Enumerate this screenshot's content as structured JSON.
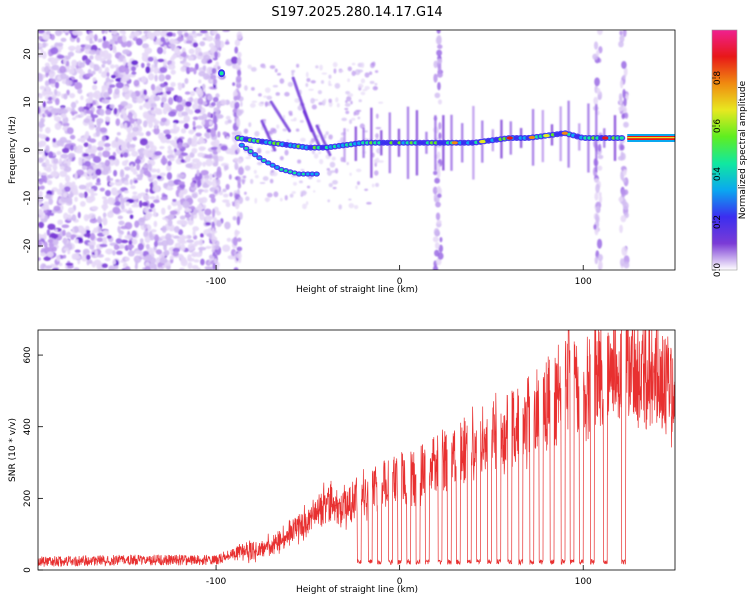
{
  "title": "S197.2025.280.14.17.G14",
  "chart_data": [
    {
      "type": "heatmap",
      "name": "spectrogram",
      "xlabel": "Height of straight line (km)",
      "ylabel": "Frequency (Hz)",
      "xlim": [
        -197,
        150
      ],
      "ylim": [
        -25,
        25
      ],
      "xticks": [
        -100,
        0,
        100
      ],
      "yticks": [
        -20,
        -10,
        0,
        10,
        20
      ],
      "colorbar": {
        "label": "Normalized spectral amplitude",
        "range": [
          0,
          1
        ],
        "ticks": [
          "0.0",
          "0.2",
          "0.4",
          "0.6",
          "0.8"
        ],
        "colors": [
          "#ffffff",
          "#7a3bd6",
          "#3b2ef0",
          "#0aa8f0",
          "#10e8a0",
          "#60ee20",
          "#e8e820",
          "#f08a10",
          "#e81818",
          "#f02090"
        ]
      },
      "ridge": {
        "x": [
          -88,
          -80,
          -70,
          -60,
          -50,
          -40,
          -30,
          -20,
          -10,
          0,
          10,
          20,
          30,
          40,
          50,
          60,
          70,
          80,
          90,
          100,
          110,
          120,
          150
        ],
        "freq": [
          2.5,
          2,
          1.5,
          1,
          0.5,
          0.5,
          1,
          1.5,
          1.5,
          1.5,
          1.5,
          1.5,
          1.5,
          1.5,
          2,
          2.5,
          2.5,
          3,
          3.5,
          2.5,
          2.5,
          2.5,
          2.5
        ]
      },
      "lower_branch": {
        "x": [
          -86,
          -75,
          -65,
          -55,
          -45
        ],
        "freq": [
          1,
          -2,
          -4,
          -5,
          -5
        ]
      },
      "streak_x": [
        -100,
        -88,
        21,
        108,
        122
      ]
    },
    {
      "type": "line",
      "name": "snr",
      "xlabel": "Height of straight line (km)",
      "ylabel": "SNR (10 * v/v)",
      "xlim": [
        -197,
        150
      ],
      "ylim": [
        0,
        670
      ],
      "xticks": [
        -100,
        0,
        100
      ],
      "yticks": [
        0,
        200,
        400,
        600
      ],
      "color": "#e83030",
      "baseline_x": [
        -197,
        -150,
        -100,
        -90,
        -80,
        -70,
        -60,
        -50,
        -40,
        -30,
        -20,
        -10,
        0,
        10,
        20,
        30,
        40,
        50,
        60,
        70,
        80,
        90,
        100,
        110,
        120,
        130,
        140,
        150
      ],
      "baseline_y": [
        20,
        25,
        25,
        45,
        55,
        70,
        100,
        150,
        190,
        180,
        220,
        240,
        260,
        270,
        300,
        330,
        370,
        380,
        400,
        430,
        470,
        520,
        500,
        560,
        580,
        570,
        560,
        490
      ],
      "dropouts_x": [
        -22,
        -16,
        -11,
        -5,
        0,
        5,
        10,
        15,
        22,
        27,
        32,
        38,
        43,
        49,
        54,
        60,
        66,
        72,
        77,
        83,
        89,
        94,
        99,
        105,
        112,
        122
      ],
      "spike": {
        "x": 92,
        "y": 670
      }
    }
  ]
}
